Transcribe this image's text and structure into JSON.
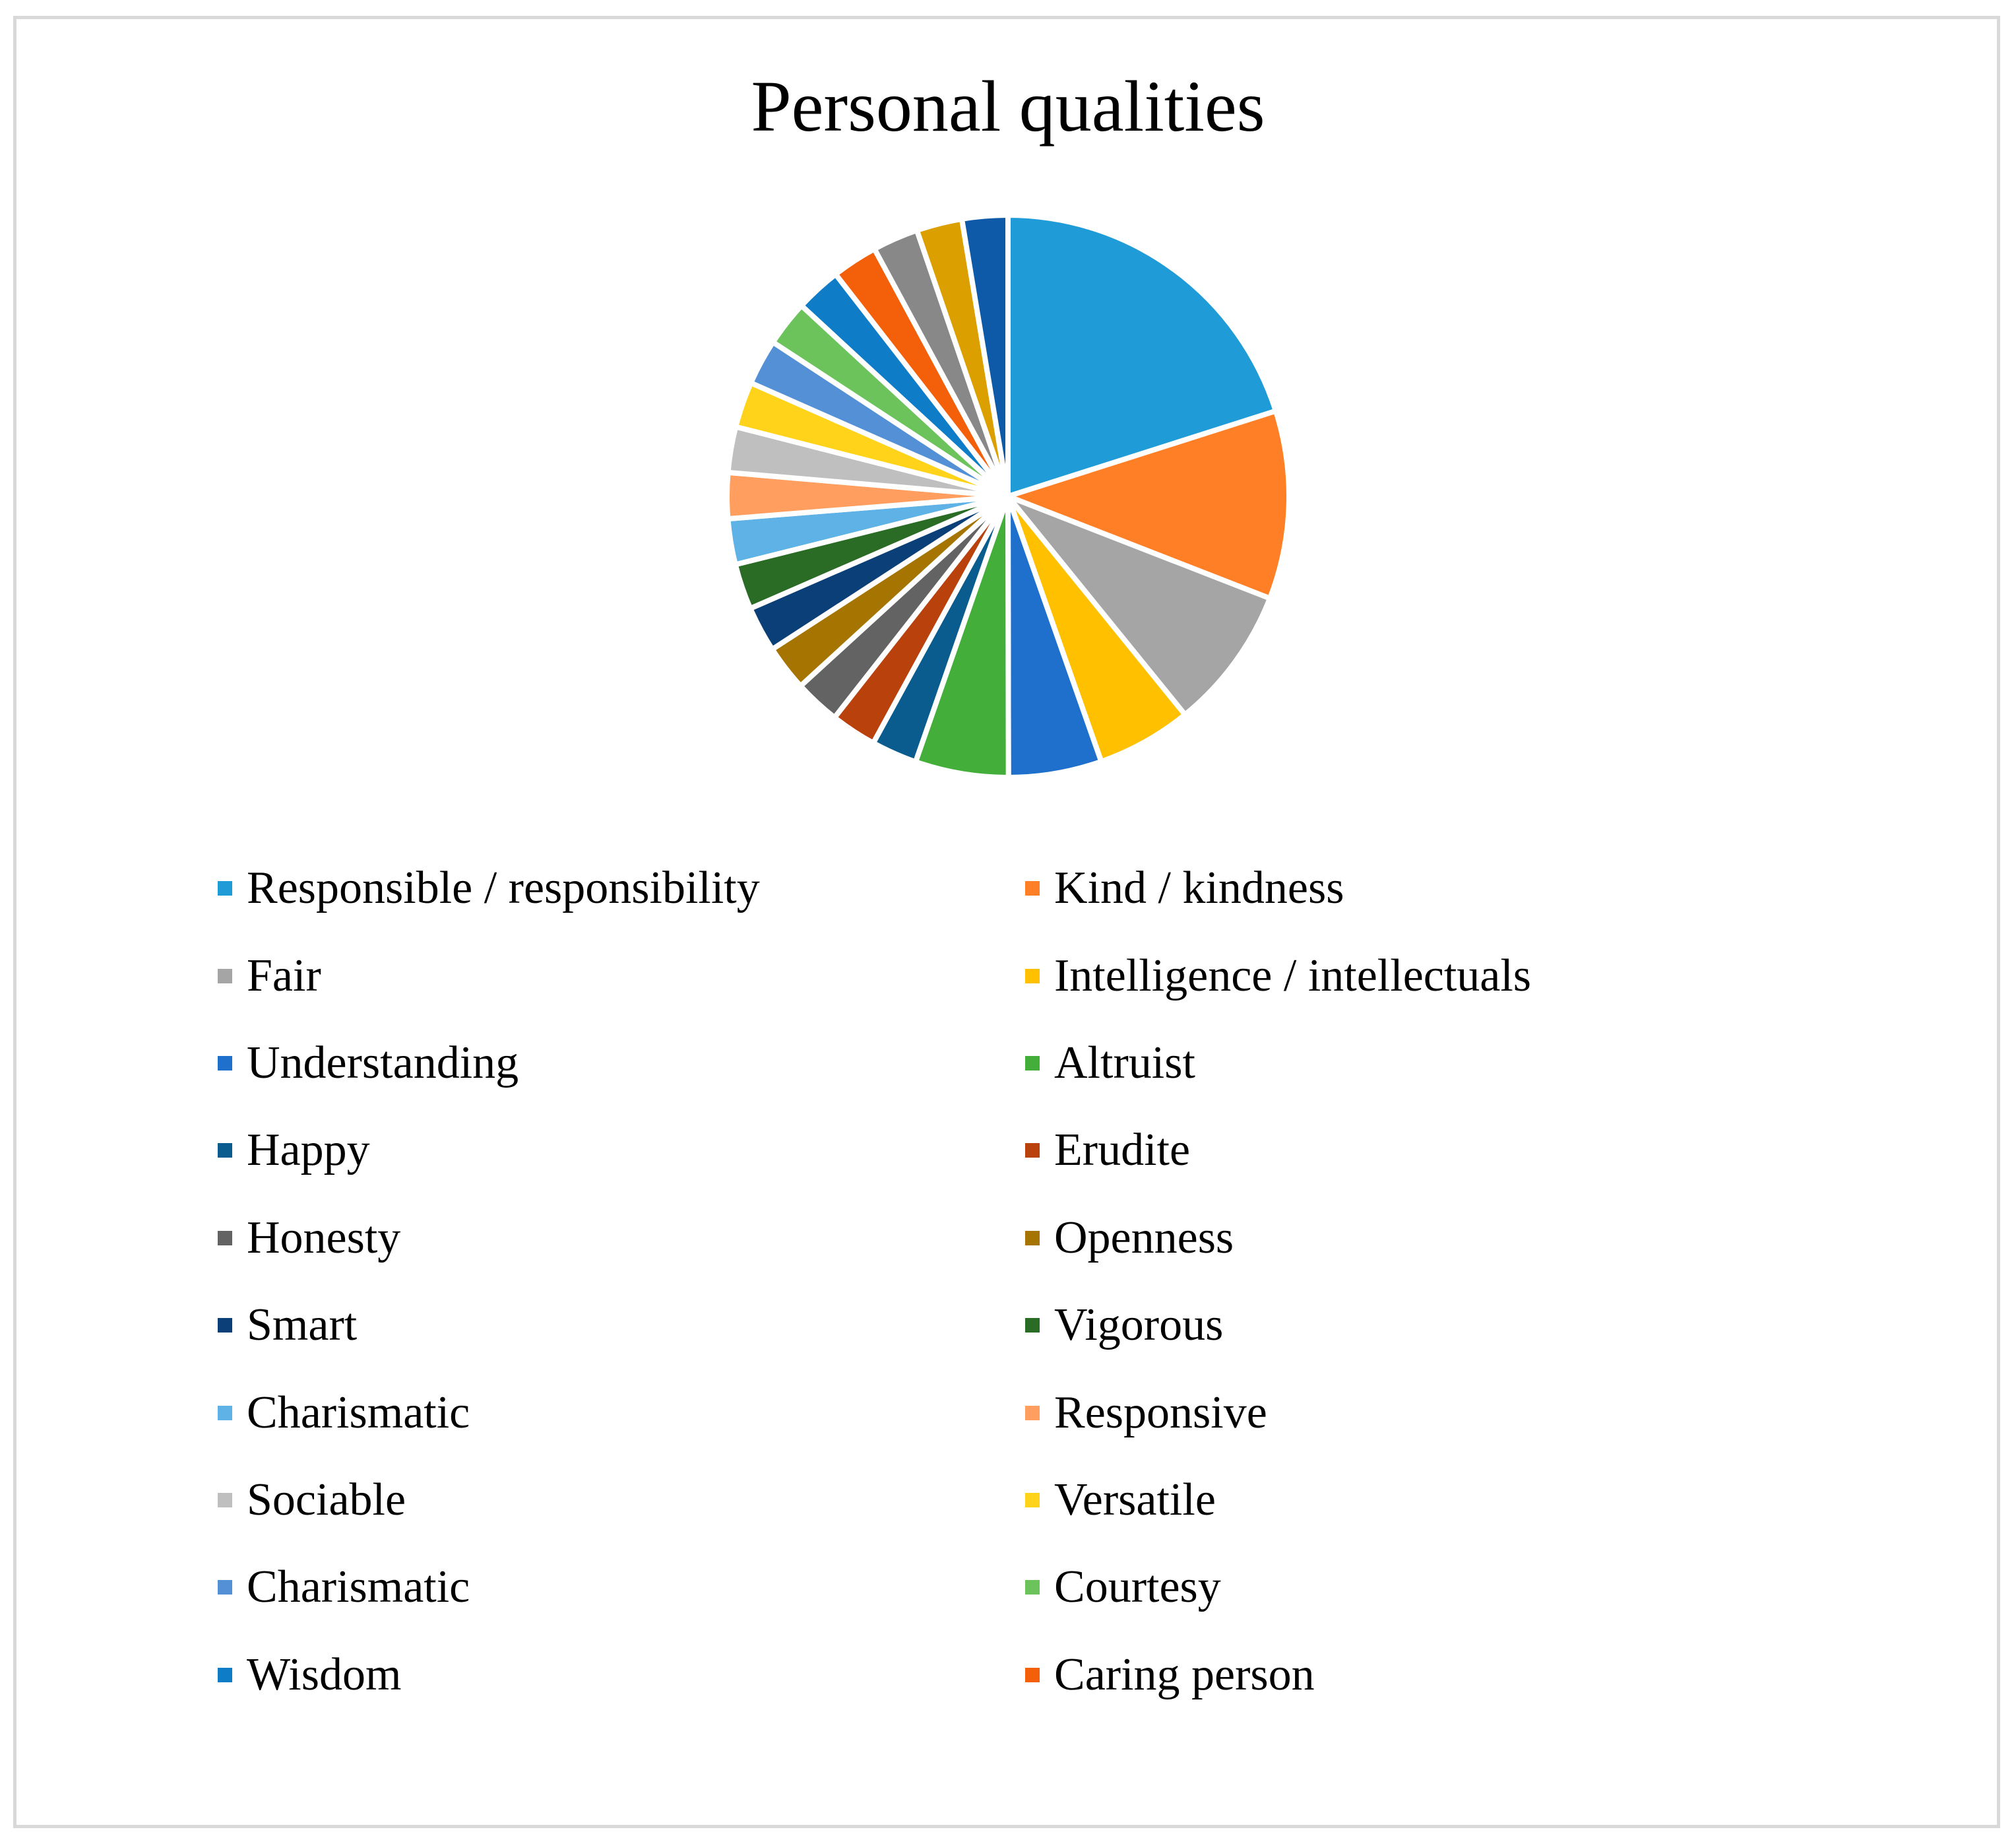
{
  "chart_data": {
    "type": "pie",
    "title": "Personal qualities",
    "legend_placement": "bottom",
    "slices": [
      {
        "label": "Responsible / responsibility",
        "value": 19.5,
        "color": "#1f9bd7"
      },
      {
        "label": "Kind / kindness",
        "value": 10.5,
        "color": "#ff7f27"
      },
      {
        "label": "Fair",
        "value": 8.0,
        "color": "#a5a5a5"
      },
      {
        "label": "Intelligence / intellectuals",
        "value": 5.3,
        "color": "#ffc000"
      },
      {
        "label": "Understanding",
        "value": 5.2,
        "color": "#1f6fcc"
      },
      {
        "label": "Altruist",
        "value": 5.2,
        "color": "#44ae3b"
      },
      {
        "label": "Happy",
        "value": 2.55,
        "color": "#0a5c8f"
      },
      {
        "label": "Erudite",
        "value": 2.55,
        "color": "#b8410c"
      },
      {
        "label": "Honesty",
        "value": 2.55,
        "color": "#636363"
      },
      {
        "label": "Openness",
        "value": 2.55,
        "color": "#a67400"
      },
      {
        "label": "Smart",
        "value": 2.55,
        "color": "#0b3f78"
      },
      {
        "label": "Vigorous",
        "value": 2.55,
        "color": "#2a6b25"
      },
      {
        "label": "Charismatic",
        "value": 2.55,
        "color": "#5fb2e6"
      },
      {
        "label": "Responsive",
        "value": 2.55,
        "color": "#ff9e5e"
      },
      {
        "label": "Sociable",
        "value": 2.55,
        "color": "#bfbfbf"
      },
      {
        "label": "Versatile",
        "value": 2.55,
        "color": "#ffd31a"
      },
      {
        "label": "Charismatic",
        "value": 2.55,
        "color": "#5490d6"
      },
      {
        "label": "Courtesy",
        "value": 2.55,
        "color": "#6cc35c"
      },
      {
        "label": "Wisdom",
        "value": 2.55,
        "color": "#0f7cc8"
      },
      {
        "label": "Caring person",
        "value": 2.55,
        "color": "#f4600a"
      },
      {
        "label": "",
        "value": 2.55,
        "color": "#888888"
      },
      {
        "label": "",
        "value": 2.55,
        "color": "#dba000"
      },
      {
        "label": "",
        "value": 2.55,
        "color": "#0e5aa8"
      }
    ]
  }
}
